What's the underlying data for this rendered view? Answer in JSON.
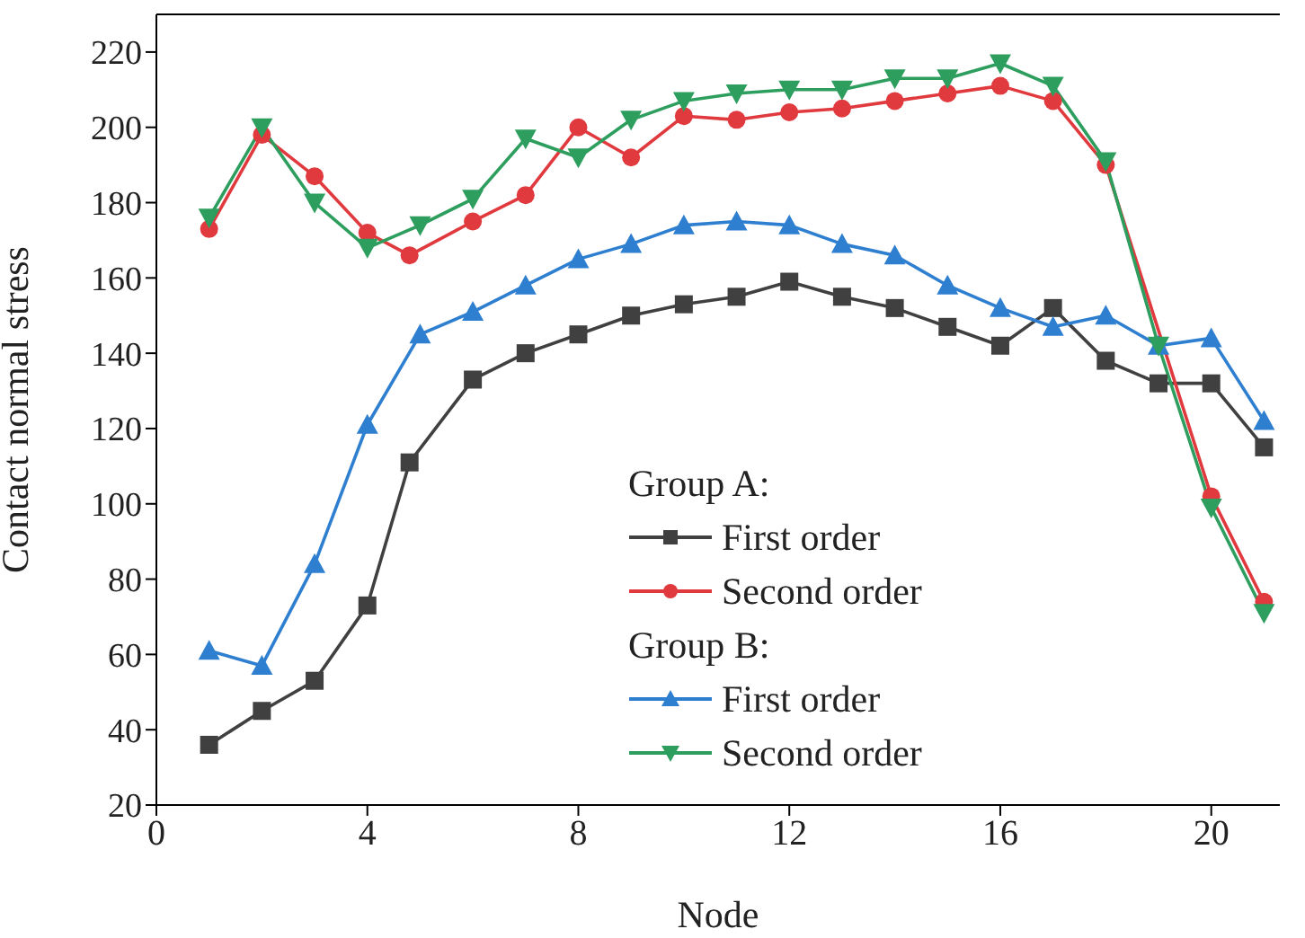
{
  "chart_data": {
    "type": "line",
    "xlabel": "Node",
    "ylabel": "Contact normal stress",
    "xlim": [
      0,
      21.3
    ],
    "xticks": [
      0,
      4,
      8,
      12,
      16,
      20
    ],
    "ylim": [
      20,
      230
    ],
    "yticks": [
      20,
      40,
      60,
      80,
      100,
      120,
      140,
      160,
      180,
      200,
      220
    ],
    "grid": false,
    "legend": "bottom right",
    "annotations": [
      "Group A:",
      "Group B:"
    ],
    "series": [
      {
        "name": "First order",
        "color": "#404040",
        "marker": "square",
        "x": [
          1,
          2,
          3,
          4,
          4.8,
          6,
          7,
          8,
          9,
          10,
          11,
          12,
          13,
          14,
          15,
          16,
          17,
          18,
          19,
          20,
          21
        ],
        "values": [
          36,
          45,
          53,
          73,
          111,
          133,
          140,
          145,
          150,
          153,
          155,
          159,
          155,
          152,
          147,
          142,
          152,
          138,
          132,
          132,
          115
        ]
      },
      {
        "name": "Second order",
        "color": "#e0393e",
        "marker": "circle",
        "x": [
          1,
          2,
          3,
          4,
          4.8,
          6,
          7,
          8,
          9,
          10,
          11,
          12,
          13,
          14,
          15,
          16,
          17,
          18,
          20,
          21
        ],
        "values": [
          173,
          198,
          187,
          172,
          166,
          175,
          182,
          200,
          192,
          203,
          202,
          204,
          205,
          207,
          209,
          211,
          207,
          190,
          102,
          74
        ]
      },
      {
        "name": "First order",
        "color": "#2f7fd0",
        "marker": "triangle",
        "x": [
          1,
          2,
          3,
          4,
          5,
          6,
          7,
          8,
          9,
          10,
          11,
          12,
          13,
          14,
          15,
          16,
          17,
          18,
          19,
          20,
          21
        ],
        "values": [
          61,
          57,
          84,
          121,
          145,
          151,
          158,
          165,
          169,
          174,
          175,
          174,
          169,
          166,
          158,
          152,
          147,
          150,
          142,
          144,
          122
        ]
      },
      {
        "name": "Second order",
        "color": "#2e9e5e",
        "marker": "triangle-down",
        "x": [
          1,
          2,
          3,
          4,
          5,
          6,
          7,
          8,
          9,
          10,
          11,
          12,
          13,
          14,
          15,
          16,
          17,
          18,
          19,
          20,
          21
        ],
        "values": [
          176,
          200,
          180,
          168,
          174,
          181,
          197,
          192,
          202,
          207,
          209,
          210,
          210,
          213,
          213,
          217,
          211,
          191,
          142,
          99,
          71
        ]
      }
    ]
  }
}
